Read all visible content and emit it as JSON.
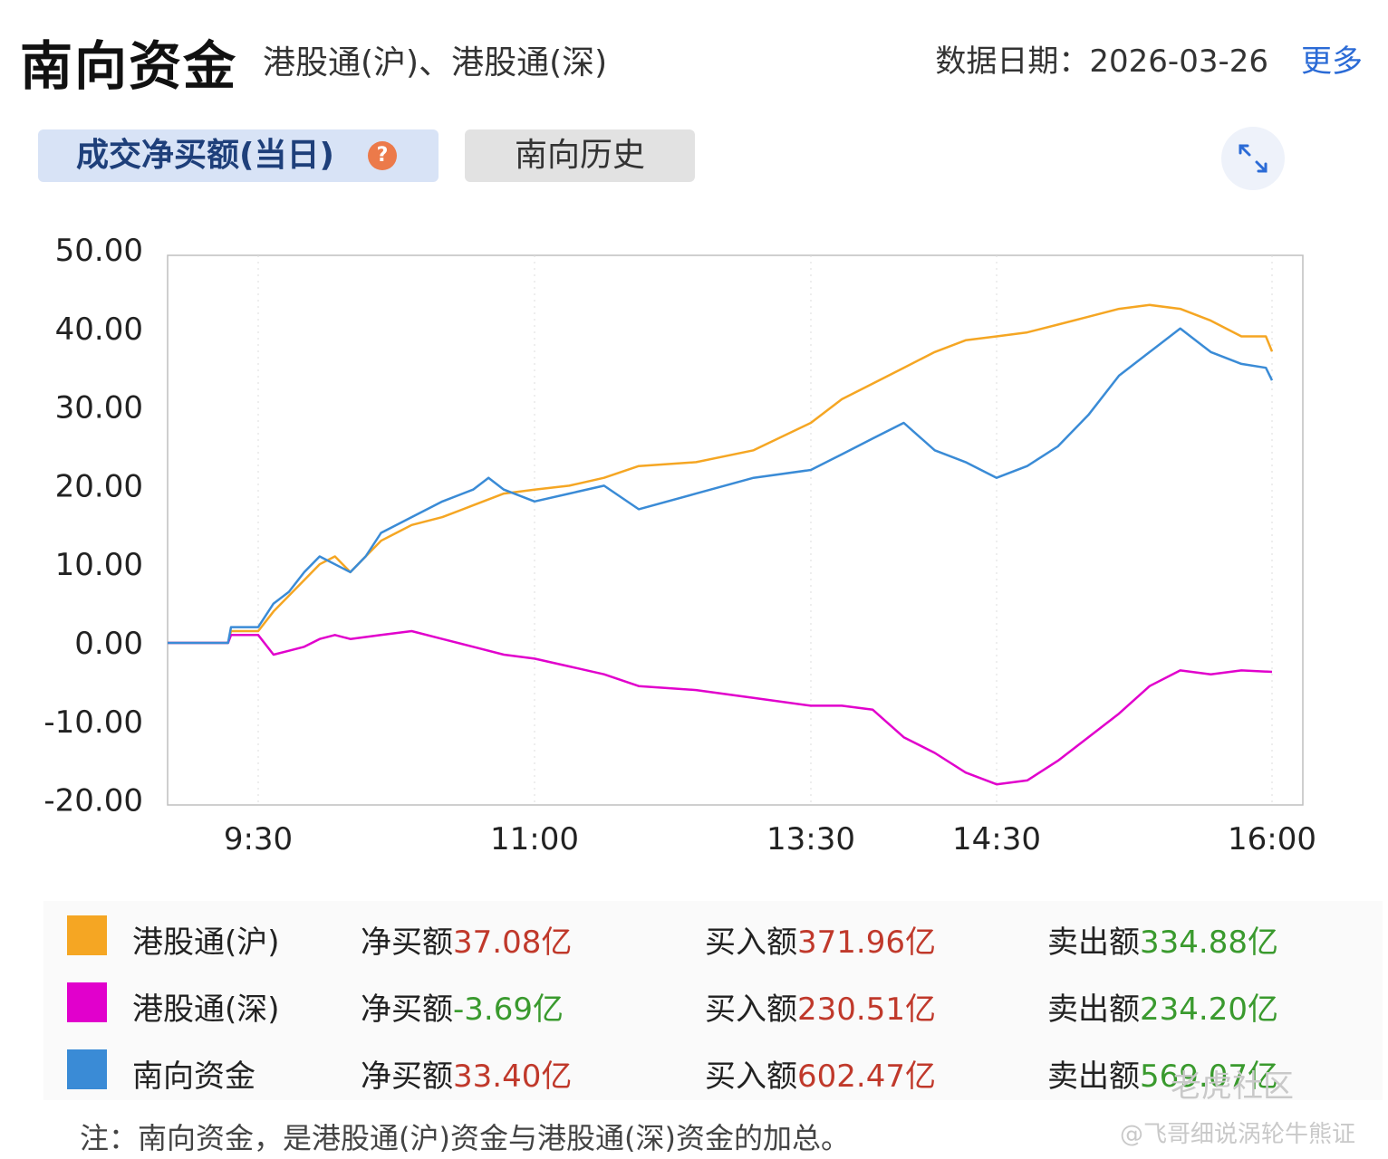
{
  "header": {
    "title": "南向资金",
    "subtitle": "港股通(沪)、港股通(深)",
    "date": "数据日期：2026-03-26",
    "more": "更多"
  },
  "tabs": {
    "active": "成交净买额(当日)",
    "help": "?",
    "inactive": "南向历史"
  },
  "colors": {
    "hu": "#f5a623",
    "shen": "#e100cc",
    "total": "#3a8bd6",
    "positive": "#c0392b",
    "negative": "#3a9a2e"
  },
  "chart_data": {
    "type": "line",
    "x_ticks": [
      "9:30",
      "11:00",
      "13:30",
      "14:30",
      "16:00"
    ],
    "y_ticks": [
      "50.00",
      "40.00",
      "30.00",
      "20.00",
      "10.00",
      "0.00",
      "-10.00",
      "-20.00"
    ],
    "ylim": [
      -20,
      50
    ],
    "grid": true,
    "series": [
      {
        "name": "港股通(沪)",
        "color": "#f5a623",
        "points": [
          [
            "9:00",
            0
          ],
          [
            "9:20",
            0
          ],
          [
            "9:21",
            1.5
          ],
          [
            "9:30",
            1.5
          ],
          [
            "9:35",
            4
          ],
          [
            "9:40",
            6
          ],
          [
            "9:45",
            8
          ],
          [
            "9:50",
            10
          ],
          [
            "9:55",
            11
          ],
          [
            "10:00",
            9
          ],
          [
            "10:05",
            11
          ],
          [
            "10:10",
            13
          ],
          [
            "10:15",
            14
          ],
          [
            "10:20",
            15
          ],
          [
            "10:30",
            16
          ],
          [
            "10:40",
            17.5
          ],
          [
            "10:50",
            19
          ],
          [
            "11:00",
            19.5
          ],
          [
            "11:10",
            20
          ],
          [
            "11:20",
            21
          ],
          [
            "11:30",
            22.5
          ],
          [
            "13:00",
            22.5
          ],
          [
            "13:10",
            23
          ],
          [
            "13:20",
            24.5
          ],
          [
            "13:30",
            28
          ],
          [
            "13:40",
            31
          ],
          [
            "13:50",
            33
          ],
          [
            "14:00",
            35
          ],
          [
            "14:10",
            37
          ],
          [
            "14:20",
            38.5
          ],
          [
            "14:30",
            39
          ],
          [
            "14:40",
            39.5
          ],
          [
            "14:50",
            40.5
          ],
          [
            "15:00",
            41.5
          ],
          [
            "15:10",
            42.5
          ],
          [
            "15:20",
            43
          ],
          [
            "15:30",
            42.5
          ],
          [
            "15:40",
            41
          ],
          [
            "15:50",
            39
          ],
          [
            "15:58",
            39
          ],
          [
            "16:00",
            37.08
          ]
        ]
      },
      {
        "name": "港股通(深)",
        "color": "#e100cc",
        "points": [
          [
            "9:00",
            0
          ],
          [
            "9:20",
            0
          ],
          [
            "9:21",
            1
          ],
          [
            "9:30",
            1
          ],
          [
            "9:35",
            -1.5
          ],
          [
            "9:40",
            -1
          ],
          [
            "9:45",
            -0.5
          ],
          [
            "9:50",
            0.5
          ],
          [
            "9:55",
            1
          ],
          [
            "10:00",
            0.5
          ],
          [
            "10:10",
            1
          ],
          [
            "10:20",
            1.5
          ],
          [
            "10:30",
            0.5
          ],
          [
            "10:40",
            -0.5
          ],
          [
            "10:50",
            -1.5
          ],
          [
            "11:00",
            -2
          ],
          [
            "11:10",
            -3
          ],
          [
            "11:20",
            -4
          ],
          [
            "11:30",
            -5.5
          ],
          [
            "13:00",
            -5.5
          ],
          [
            "13:10",
            -6
          ],
          [
            "13:20",
            -7
          ],
          [
            "13:30",
            -8
          ],
          [
            "13:40",
            -8
          ],
          [
            "13:50",
            -8.5
          ],
          [
            "14:00",
            -12
          ],
          [
            "14:10",
            -14
          ],
          [
            "14:20",
            -16.5
          ],
          [
            "14:30",
            -18
          ],
          [
            "14:40",
            -17.5
          ],
          [
            "14:50",
            -15
          ],
          [
            "15:00",
            -12
          ],
          [
            "15:10",
            -9
          ],
          [
            "15:20",
            -5.5
          ],
          [
            "15:30",
            -3.5
          ],
          [
            "15:40",
            -4
          ],
          [
            "15:50",
            -3.5
          ],
          [
            "16:00",
            -3.69
          ]
        ]
      },
      {
        "name": "南向资金",
        "color": "#3a8bd6",
        "points": [
          [
            "9:00",
            0
          ],
          [
            "9:20",
            0
          ],
          [
            "9:21",
            2
          ],
          [
            "9:30",
            2
          ],
          [
            "9:35",
            5
          ],
          [
            "9:40",
            6.5
          ],
          [
            "9:45",
            9
          ],
          [
            "9:50",
            11
          ],
          [
            "9:55",
            10
          ],
          [
            "10:00",
            9
          ],
          [
            "10:05",
            11
          ],
          [
            "10:10",
            14
          ],
          [
            "10:20",
            16
          ],
          [
            "10:30",
            18
          ],
          [
            "10:40",
            19.5
          ],
          [
            "10:45",
            21
          ],
          [
            "10:50",
            19.5
          ],
          [
            "11:00",
            18
          ],
          [
            "11:10",
            19
          ],
          [
            "11:20",
            20
          ],
          [
            "11:30",
            17
          ],
          [
            "13:00",
            17
          ],
          [
            "13:10",
            19
          ],
          [
            "13:20",
            21
          ],
          [
            "13:30",
            22
          ],
          [
            "13:40",
            24
          ],
          [
            "13:50",
            26
          ],
          [
            "14:00",
            28
          ],
          [
            "14:10",
            24.5
          ],
          [
            "14:20",
            23
          ],
          [
            "14:30",
            21
          ],
          [
            "14:40",
            22.5
          ],
          [
            "14:50",
            25
          ],
          [
            "15:00",
            29
          ],
          [
            "15:10",
            34
          ],
          [
            "15:20",
            37
          ],
          [
            "15:30",
            40
          ],
          [
            "15:40",
            37
          ],
          [
            "15:50",
            35.5
          ],
          [
            "15:58",
            35
          ],
          [
            "16:00",
            33.4
          ]
        ]
      }
    ]
  },
  "legend": [
    {
      "name": "港股通(沪)",
      "color": "#f5a623",
      "net_label": "净买额",
      "net": "37.08亿",
      "net_sign": "pos",
      "buy_label": "买入额",
      "buy": "371.96亿",
      "sell_label": "卖出额",
      "sell": "334.88亿"
    },
    {
      "name": "港股通(深)",
      "color": "#e100cc",
      "net_label": "净买额",
      "net": "-3.69亿",
      "net_sign": "neg",
      "buy_label": "买入额",
      "buy": "230.51亿",
      "sell_label": "卖出额",
      "sell": "234.20亿"
    },
    {
      "name": "南向资金",
      "color": "#3a8bd6",
      "net_label": "净买额",
      "net": "33.40亿",
      "net_sign": "pos",
      "buy_label": "买入额",
      "buy": "602.47亿",
      "sell_label": "卖出额",
      "sell": "569.07亿"
    }
  ],
  "note": "注：南向资金，是港股通(沪)资金与港股通(深)资金的加总。",
  "watermark": {
    "brand": "老虎社区",
    "author": "@飞哥细说涡轮牛熊证"
  }
}
